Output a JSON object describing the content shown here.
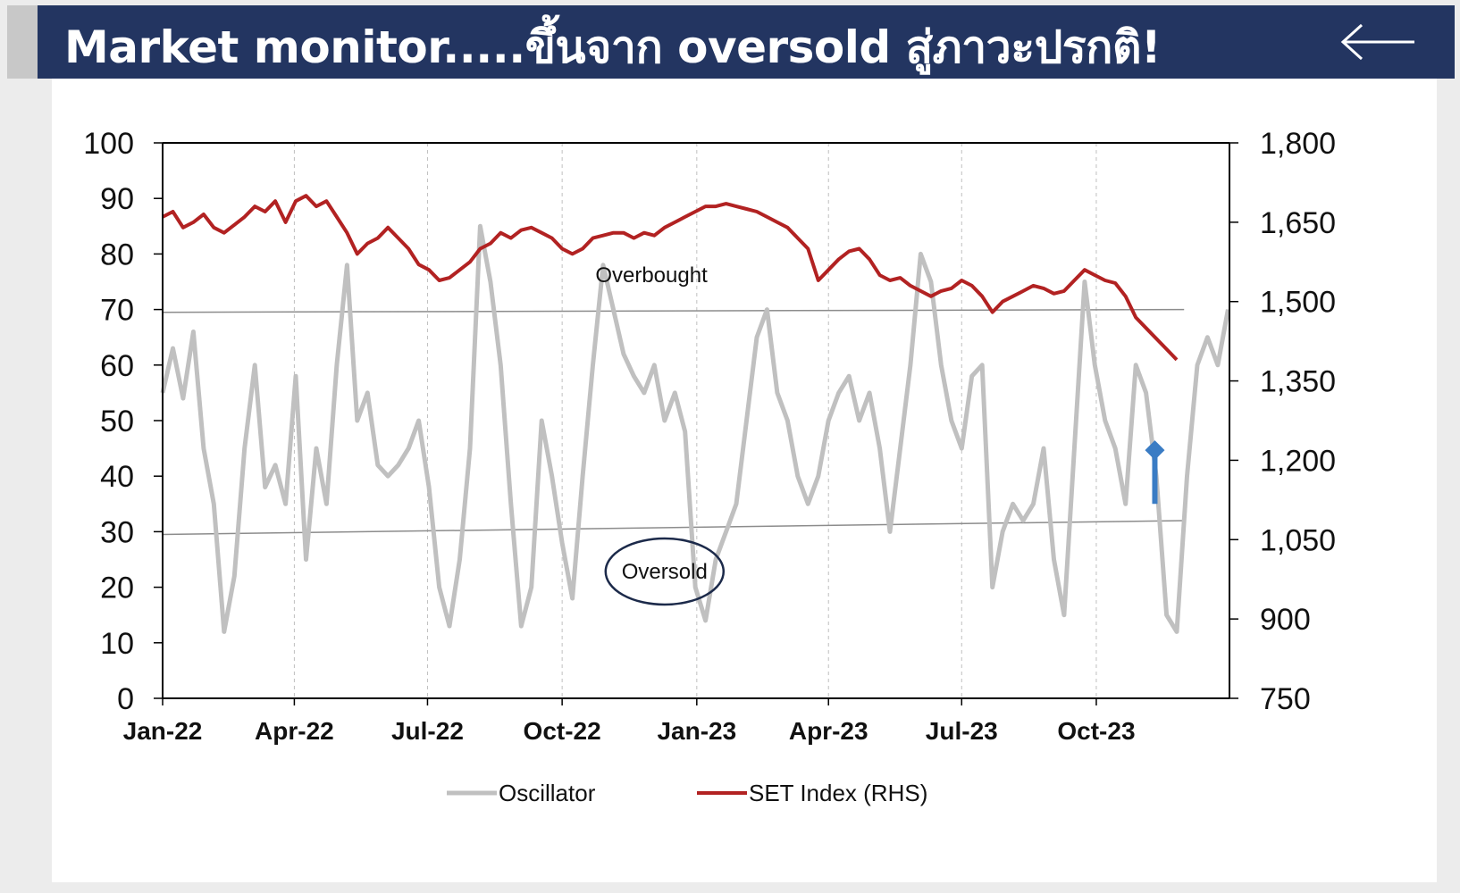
{
  "header": {
    "title": "Market monitor.....ขึ้นจาก oversold สู่ภาวะปรกติ!",
    "back_icon": "arrow-left-icon"
  },
  "colors": {
    "header_bg": "#233561",
    "oscillator": "#c0c0c0",
    "set_index": "#b22222",
    "arrow": "#3a7cc4"
  },
  "chart_data": {
    "type": "line",
    "x_labels": [
      "Jan-22",
      "Apr-22",
      "Jul-22",
      "Oct-22",
      "Jan-23",
      "Apr-23",
      "Jul-23",
      "Oct-23"
    ],
    "x_range": [
      "2022-01-01",
      "2023-12-31"
    ],
    "y_left": {
      "ticks": [
        0,
        10,
        20,
        30,
        40,
        50,
        60,
        70,
        80,
        90,
        100
      ],
      "ylim": [
        0,
        100
      ]
    },
    "y_right": {
      "ticks": [
        "750",
        "900",
        "1,050",
        "1,200",
        "1,350",
        "1,500",
        "1,650",
        "1,800"
      ],
      "ylim": [
        750,
        1800
      ]
    },
    "grid": "vertical dashed at quarter starts",
    "legend_position": "bottom",
    "annotations": {
      "overbought": "Overbought",
      "oversold": "Oversold",
      "overbought_line": {
        "start": [
          "2022-01-01",
          69.5
        ],
        "end": [
          "2023-11-30",
          70
        ]
      },
      "oversold_line": {
        "start": [
          "2022-01-01",
          29.5
        ],
        "end": [
          "2023-11-30",
          32
        ]
      },
      "arrow": {
        "date": "2023-11-10",
        "from": 35,
        "to": 45
      }
    },
    "series": [
      {
        "name": "Oscillator",
        "axis": "left",
        "points": [
          [
            "2022-01-01",
            55
          ],
          [
            "2022-01-08",
            63
          ],
          [
            "2022-01-15",
            54
          ],
          [
            "2022-01-22",
            66
          ],
          [
            "2022-01-29",
            45
          ],
          [
            "2022-02-05",
            35
          ],
          [
            "2022-02-12",
            12
          ],
          [
            "2022-02-19",
            22
          ],
          [
            "2022-02-26",
            45
          ],
          [
            "2022-03-05",
            60
          ],
          [
            "2022-03-12",
            38
          ],
          [
            "2022-03-19",
            42
          ],
          [
            "2022-03-26",
            35
          ],
          [
            "2022-04-02",
            58
          ],
          [
            "2022-04-09",
            25
          ],
          [
            "2022-04-16",
            45
          ],
          [
            "2022-04-23",
            35
          ],
          [
            "2022-04-30",
            60
          ],
          [
            "2022-05-07",
            78
          ],
          [
            "2022-05-14",
            50
          ],
          [
            "2022-05-21",
            55
          ],
          [
            "2022-05-28",
            42
          ],
          [
            "2022-06-04",
            40
          ],
          [
            "2022-06-11",
            42
          ],
          [
            "2022-06-18",
            45
          ],
          [
            "2022-06-25",
            50
          ],
          [
            "2022-07-02",
            38
          ],
          [
            "2022-07-09",
            20
          ],
          [
            "2022-07-16",
            13
          ],
          [
            "2022-07-23",
            25
          ],
          [
            "2022-07-30",
            45
          ],
          [
            "2022-08-06",
            85
          ],
          [
            "2022-08-13",
            75
          ],
          [
            "2022-08-20",
            60
          ],
          [
            "2022-08-27",
            35
          ],
          [
            "2022-09-03",
            13
          ],
          [
            "2022-09-10",
            20
          ],
          [
            "2022-09-17",
            50
          ],
          [
            "2022-09-24",
            40
          ],
          [
            "2022-10-01",
            28
          ],
          [
            "2022-10-08",
            18
          ],
          [
            "2022-10-15",
            40
          ],
          [
            "2022-10-22",
            60
          ],
          [
            "2022-10-29",
            78
          ],
          [
            "2022-11-05",
            70
          ],
          [
            "2022-11-12",
            62
          ],
          [
            "2022-11-19",
            58
          ],
          [
            "2022-11-26",
            55
          ],
          [
            "2022-12-03",
            60
          ],
          [
            "2022-12-10",
            50
          ],
          [
            "2022-12-17",
            55
          ],
          [
            "2022-12-24",
            48
          ],
          [
            "2022-12-31",
            20
          ],
          [
            "2023-01-07",
            14
          ],
          [
            "2023-01-14",
            25
          ],
          [
            "2023-01-21",
            30
          ],
          [
            "2023-01-28",
            35
          ],
          [
            "2023-02-04",
            50
          ],
          [
            "2023-02-11",
            65
          ],
          [
            "2023-02-18",
            70
          ],
          [
            "2023-02-25",
            55
          ],
          [
            "2023-03-04",
            50
          ],
          [
            "2023-03-11",
            40
          ],
          [
            "2023-03-18",
            35
          ],
          [
            "2023-03-25",
            40
          ],
          [
            "2023-04-01",
            50
          ],
          [
            "2023-04-08",
            55
          ],
          [
            "2023-04-15",
            58
          ],
          [
            "2023-04-22",
            50
          ],
          [
            "2023-04-29",
            55
          ],
          [
            "2023-05-06",
            45
          ],
          [
            "2023-05-13",
            30
          ],
          [
            "2023-05-20",
            45
          ],
          [
            "2023-05-27",
            60
          ],
          [
            "2023-06-03",
            80
          ],
          [
            "2023-06-10",
            75
          ],
          [
            "2023-06-17",
            60
          ],
          [
            "2023-06-24",
            50
          ],
          [
            "2023-07-01",
            45
          ],
          [
            "2023-07-08",
            58
          ],
          [
            "2023-07-15",
            60
          ],
          [
            "2023-07-22",
            20
          ],
          [
            "2023-07-29",
            30
          ],
          [
            "2023-08-05",
            35
          ],
          [
            "2023-08-12",
            32
          ],
          [
            "2023-08-19",
            35
          ],
          [
            "2023-08-26",
            45
          ],
          [
            "2023-09-02",
            25
          ],
          [
            "2023-09-09",
            15
          ],
          [
            "2023-09-16",
            45
          ],
          [
            "2023-09-23",
            75
          ],
          [
            "2023-09-30",
            60
          ],
          [
            "2023-10-07",
            50
          ],
          [
            "2023-10-14",
            45
          ],
          [
            "2023-10-21",
            35
          ],
          [
            "2023-10-28",
            60
          ],
          [
            "2023-11-04",
            55
          ],
          [
            "2023-11-11",
            40
          ],
          [
            "2023-11-18",
            15
          ],
          [
            "2023-11-25",
            12
          ],
          [
            "2023-12-02",
            40
          ],
          [
            "2023-12-09",
            60
          ],
          [
            "2023-12-16",
            65
          ],
          [
            "2023-12-23",
            60
          ],
          [
            "2023-12-30",
            70
          ]
        ]
      },
      {
        "name": "SET Index (RHS)",
        "axis": "right",
        "points": [
          [
            "2022-01-01",
            1660
          ],
          [
            "2022-01-08",
            1670
          ],
          [
            "2022-01-15",
            1640
          ],
          [
            "2022-01-22",
            1650
          ],
          [
            "2022-01-29",
            1665
          ],
          [
            "2022-02-05",
            1640
          ],
          [
            "2022-02-12",
            1630
          ],
          [
            "2022-02-19",
            1645
          ],
          [
            "2022-02-26",
            1660
          ],
          [
            "2022-03-05",
            1680
          ],
          [
            "2022-03-12",
            1670
          ],
          [
            "2022-03-19",
            1690
          ],
          [
            "2022-03-26",
            1650
          ],
          [
            "2022-04-02",
            1690
          ],
          [
            "2022-04-09",
            1700
          ],
          [
            "2022-04-16",
            1680
          ],
          [
            "2022-04-23",
            1690
          ],
          [
            "2022-04-30",
            1660
          ],
          [
            "2022-05-07",
            1630
          ],
          [
            "2022-05-14",
            1590
          ],
          [
            "2022-05-21",
            1610
          ],
          [
            "2022-05-28",
            1620
          ],
          [
            "2022-06-04",
            1640
          ],
          [
            "2022-06-11",
            1620
          ],
          [
            "2022-06-18",
            1600
          ],
          [
            "2022-06-25",
            1570
          ],
          [
            "2022-07-02",
            1560
          ],
          [
            "2022-07-09",
            1540
          ],
          [
            "2022-07-16",
            1545
          ],
          [
            "2022-07-23",
            1560
          ],
          [
            "2022-07-30",
            1575
          ],
          [
            "2022-08-06",
            1600
          ],
          [
            "2022-08-13",
            1610
          ],
          [
            "2022-08-20",
            1630
          ],
          [
            "2022-08-27",
            1620
          ],
          [
            "2022-09-03",
            1635
          ],
          [
            "2022-09-10",
            1640
          ],
          [
            "2022-09-17",
            1630
          ],
          [
            "2022-09-24",
            1620
          ],
          [
            "2022-10-01",
            1600
          ],
          [
            "2022-10-08",
            1590
          ],
          [
            "2022-10-15",
            1600
          ],
          [
            "2022-10-22",
            1620
          ],
          [
            "2022-10-29",
            1625
          ],
          [
            "2022-11-05",
            1630
          ],
          [
            "2022-11-12",
            1630
          ],
          [
            "2022-11-19",
            1620
          ],
          [
            "2022-11-26",
            1630
          ],
          [
            "2022-12-03",
            1625
          ],
          [
            "2022-12-10",
            1640
          ],
          [
            "2022-12-17",
            1650
          ],
          [
            "2022-12-24",
            1660
          ],
          [
            "2022-12-31",
            1670
          ],
          [
            "2023-01-07",
            1680
          ],
          [
            "2023-01-14",
            1680
          ],
          [
            "2023-01-21",
            1685
          ],
          [
            "2023-01-28",
            1680
          ],
          [
            "2023-02-04",
            1675
          ],
          [
            "2023-02-11",
            1670
          ],
          [
            "2023-02-18",
            1660
          ],
          [
            "2023-02-25",
            1650
          ],
          [
            "2023-03-04",
            1640
          ],
          [
            "2023-03-11",
            1620
          ],
          [
            "2023-03-18",
            1600
          ],
          [
            "2023-03-25",
            1540
          ],
          [
            "2023-04-01",
            1560
          ],
          [
            "2023-04-08",
            1580
          ],
          [
            "2023-04-15",
            1595
          ],
          [
            "2023-04-22",
            1600
          ],
          [
            "2023-04-29",
            1580
          ],
          [
            "2023-05-06",
            1550
          ],
          [
            "2023-05-13",
            1540
          ],
          [
            "2023-05-20",
            1545
          ],
          [
            "2023-05-27",
            1530
          ],
          [
            "2023-06-03",
            1520
          ],
          [
            "2023-06-10",
            1510
          ],
          [
            "2023-06-17",
            1520
          ],
          [
            "2023-06-24",
            1525
          ],
          [
            "2023-07-01",
            1540
          ],
          [
            "2023-07-08",
            1530
          ],
          [
            "2023-07-15",
            1510
          ],
          [
            "2023-07-22",
            1480
          ],
          [
            "2023-07-29",
            1500
          ],
          [
            "2023-08-05",
            1510
          ],
          [
            "2023-08-12",
            1520
          ],
          [
            "2023-08-19",
            1530
          ],
          [
            "2023-08-26",
            1525
          ],
          [
            "2023-09-02",
            1515
          ],
          [
            "2023-09-09",
            1520
          ],
          [
            "2023-09-16",
            1540
          ],
          [
            "2023-09-23",
            1560
          ],
          [
            "2023-09-30",
            1550
          ],
          [
            "2023-10-07",
            1540
          ],
          [
            "2023-10-14",
            1535
          ],
          [
            "2023-10-21",
            1510
          ],
          [
            "2023-10-28",
            1470
          ],
          [
            "2023-11-04",
            1450
          ],
          [
            "2023-11-11",
            1430
          ],
          [
            "2023-11-18",
            1410
          ],
          [
            "2023-11-25",
            1390
          ]
        ]
      }
    ]
  }
}
